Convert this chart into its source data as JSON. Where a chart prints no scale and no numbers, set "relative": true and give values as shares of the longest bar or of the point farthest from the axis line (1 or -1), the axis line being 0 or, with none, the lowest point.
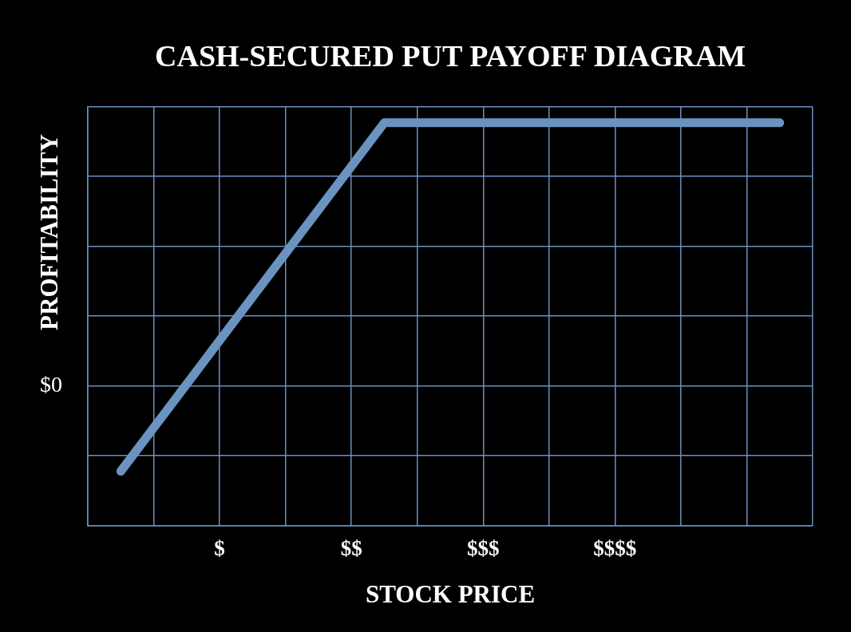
{
  "chart_data": {
    "type": "line",
    "title": "CASH-SECURED PUT PAYOFF DIAGRAM",
    "xlabel": "STOCK PRICE",
    "ylabel": "PROFITABILITY",
    "relative": true,
    "categories": [
      null,
      null,
      null,
      null,
      "$",
      null,
      null,
      null,
      "$$",
      null,
      null,
      null,
      "$$$",
      null,
      null,
      null,
      "$$$$",
      null,
      null,
      null,
      null,
      null,
      null
    ],
    "series": [
      {
        "color": "#6a93c0",
        "values": [
          null,
          -0.325,
          null,
          null,
          null,
          null,
          null,
          null,
          null,
          1,
          null,
          null,
          null,
          null,
          null,
          null,
          null,
          null,
          null,
          null,
          null,
          1,
          null
        ]
      }
    ],
    "grid": true,
    "marker": "none",
    "line_style": "solid",
    "annotations": [
      "$0"
    ]
  }
}
